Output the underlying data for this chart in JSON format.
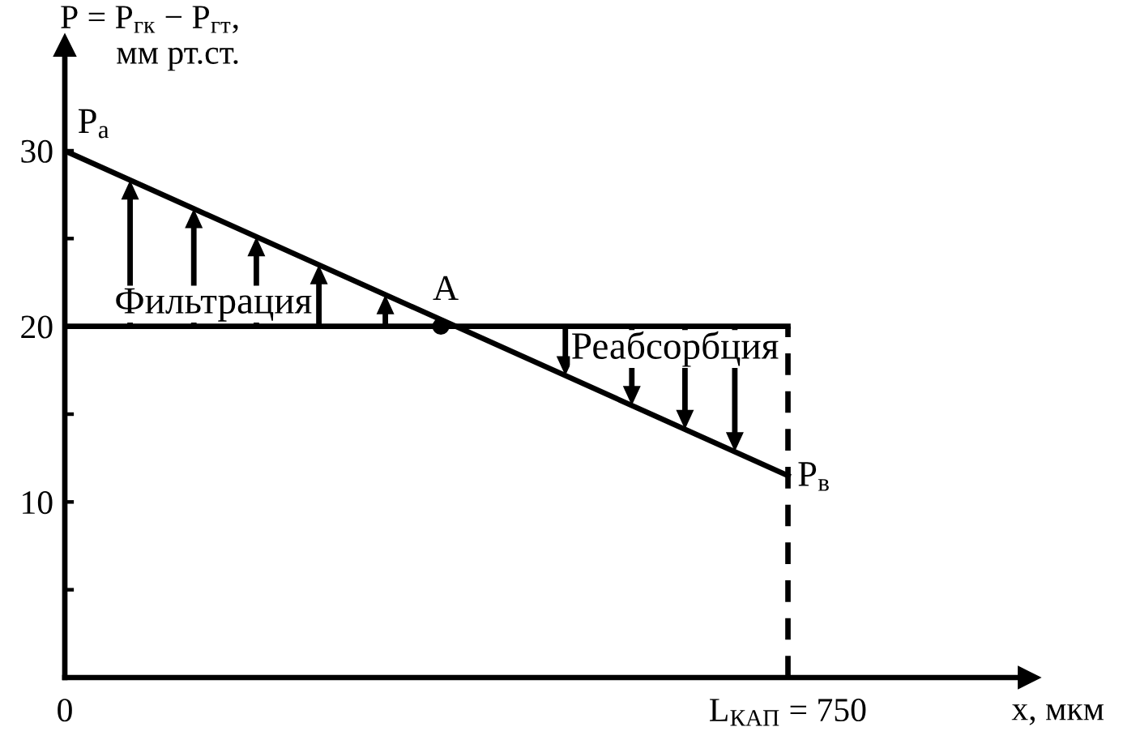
{
  "chart_data": {
    "type": "line",
    "xlabel": "x, мкм",
    "ylabel": "P = P$_{гк}$ − P$_{гт}$,\nмм рт.ст.",
    "xlim": [
      0,
      1000
    ],
    "ylim": [
      0,
      36
    ],
    "xticks": [
      0,
      {
        "value": 750,
        "label": "L$_{КАП}$ = 750"
      }
    ],
    "yticks": [
      {
        "value": 5,
        "label": null
      },
      10,
      {
        "value": 15,
        "label": null
      },
      20,
      {
        "value": 25,
        "label": null
      },
      30
    ],
    "series": [
      {
        "color": "#000000",
        "x": [
          0,
          750
        ],
        "values": [
          30,
          11.5
        ]
      },
      {
        "color": "#000000",
        "x": [
          0,
          750
        ],
        "values": [
          20,
          20
        ]
      },
      {
        "color": "#000000",
        "x": [
          750,
          750
        ],
        "values": [
          0,
          20
        ],
        "line_style": "dashed"
      },
      {
        "type": "scatter",
        "color": "#000000",
        "x": [
          390
        ],
        "values": [
          20
        ],
        "marker": "circle"
      }
    ],
    "annotations": [
      {
        "text": "P$_{а}$",
        "x": 30,
        "y": 31.5
      },
      {
        "text": "A",
        "x": 395,
        "y": 22
      },
      "Фильтрация",
      "Реабсорбция",
      {
        "text": "P$_{в}$",
        "x": 777,
        "y": 11.4
      }
    ]
  }
}
